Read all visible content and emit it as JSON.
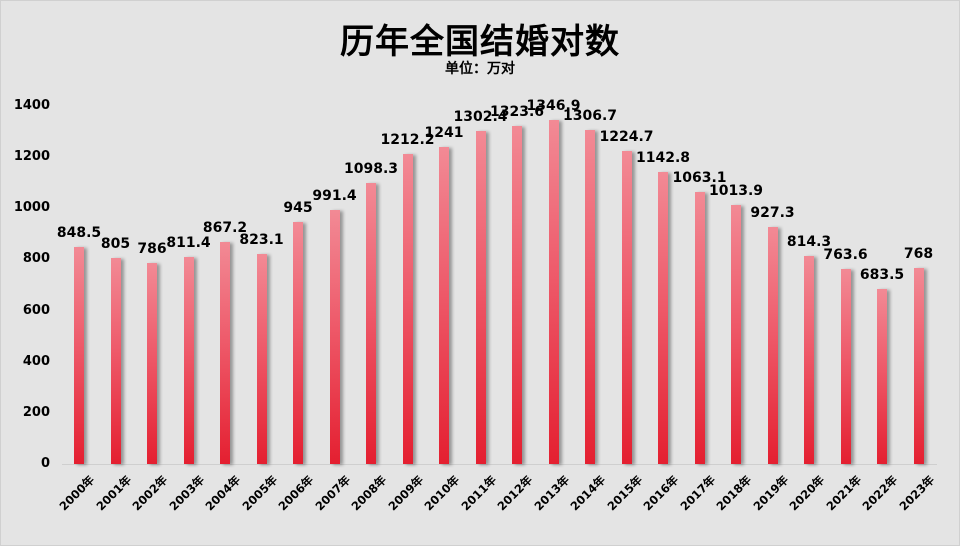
{
  "chart": {
    "title": "历年全国结婚对数",
    "subtitle": "单位：万对"
  },
  "colors": {
    "background": "#e4e4e4",
    "bar_top": "#f28a95",
    "bar_bottom": "#e41f30",
    "text": "#000000"
  },
  "chart_data": {
    "type": "bar",
    "title": "历年全国结婚对数",
    "subtitle": "单位：万对",
    "xlabel": "",
    "ylabel": "",
    "ylim": [
      0,
      1400
    ],
    "yticks": [
      0,
      200,
      400,
      600,
      800,
      1000,
      1200,
      1400
    ],
    "grid": false,
    "legend": null,
    "categories": [
      "2000年",
      "2001年",
      "2002年",
      "2003年",
      "2004年",
      "2005年",
      "2006年",
      "2007年",
      "2008年",
      "2009年",
      "2010年",
      "2011年",
      "2012年",
      "2013年",
      "2014年",
      "2015年",
      "2016年",
      "2017年",
      "2018年",
      "2019年",
      "2020年",
      "2021年",
      "2022年",
      "2023年"
    ],
    "values": [
      848.5,
      805,
      786,
      811.4,
      867.2,
      823.1,
      945,
      991.4,
      1098.3,
      1212.2,
      1241,
      1302.4,
      1323.6,
      1346.9,
      1306.7,
      1224.7,
      1142.8,
      1063.1,
      1013.9,
      927.3,
      814.3,
      763.6,
      683.5,
      768
    ],
    "data_labels": [
      "848.5",
      "805",
      "786",
      "811.4",
      "867.2",
      "823.1",
      "945",
      "991.4",
      "1098.3",
      "1212.2",
      "1241",
      "1302.4",
      "1323.6",
      "1346.9",
      "1306.7",
      "1224.7",
      "1142.8",
      "1063.1",
      "1013.9",
      "927.3",
      "814.3",
      "763.6",
      "683.5",
      "768"
    ]
  }
}
